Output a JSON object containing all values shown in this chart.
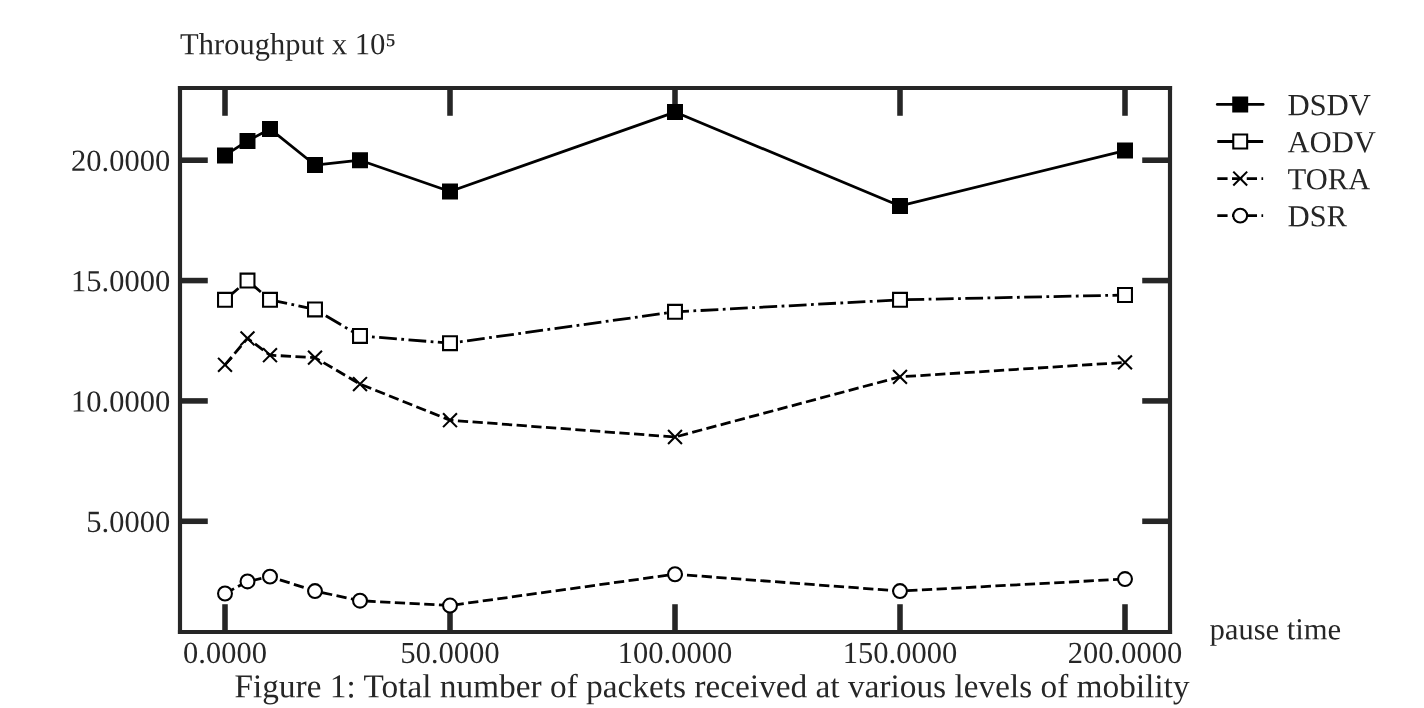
{
  "chart_data": {
    "type": "line",
    "ylabel": "Throughput x 10⁵",
    "xlabel": "pause time",
    "x": [
      0,
      5,
      10,
      20,
      30,
      50,
      100,
      150,
      200
    ],
    "series": [
      {
        "name": "DSDV",
        "color": "#000000",
        "marker": "square",
        "line_style": "solid",
        "values": [
          20.2,
          20.8,
          21.3,
          19.8,
          20.0,
          18.7,
          22.0,
          18.1,
          20.4
        ]
      },
      {
        "name": "AODV",
        "color": "#000000",
        "marker": "square",
        "line_style": "dashdot",
        "values": [
          14.2,
          15.0,
          14.2,
          13.8,
          12.7,
          12.4,
          13.7,
          14.2,
          14.4
        ]
      },
      {
        "name": "TORA",
        "color": "#000000",
        "marker": "cross",
        "line_style": "dashed",
        "values": [
          11.5,
          12.6,
          11.9,
          11.8,
          10.7,
          9.2,
          8.5,
          11.0,
          11.6
        ]
      },
      {
        "name": "DSR",
        "color": "#000000",
        "marker": "circle",
        "line_style": "dashed",
        "values": [
          2.0,
          2.5,
          2.7,
          2.1,
          1.7,
          1.5,
          2.8,
          2.1,
          2.6
        ]
      }
    ],
    "xlim": [
      -10,
      210
    ],
    "ylim": [
      0.4,
      23
    ],
    "xticks": [
      {
        "value": 0,
        "label": "0.0000"
      },
      {
        "value": 50,
        "label": "50.0000"
      },
      {
        "value": 100,
        "label": "100.0000"
      },
      {
        "value": 150,
        "label": "150.0000"
      },
      {
        "value": 200,
        "label": "200.0000"
      }
    ],
    "yticks": [
      {
        "value": 5,
        "label": "5.0000"
      },
      {
        "value": 10,
        "label": "10.0000"
      },
      {
        "value": 15,
        "label": "15.0000"
      },
      {
        "value": 20,
        "label": "20.0000"
      }
    ],
    "grid": false,
    "legend": "top right",
    "annotations": [
      "Figure 1: Total number of packets received at various levels of mobility"
    ]
  }
}
